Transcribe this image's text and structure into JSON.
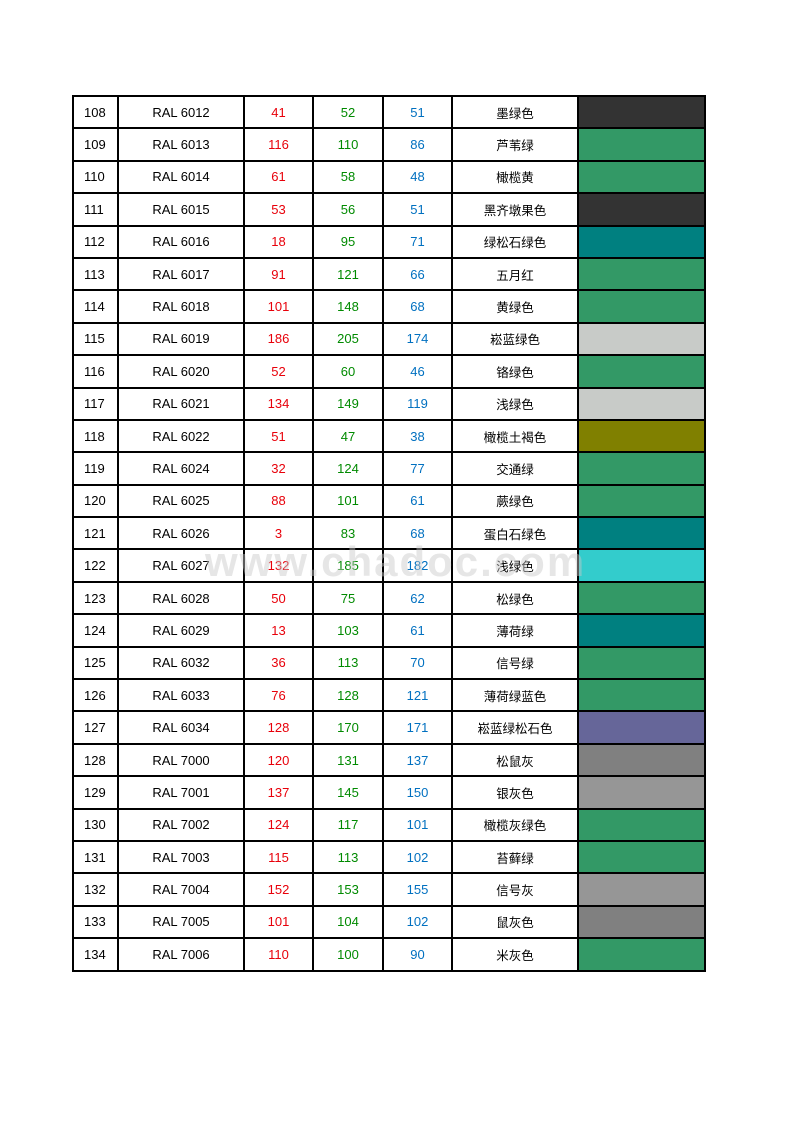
{
  "watermark": "www.chadoc.com",
  "rows": [
    {
      "no": "108",
      "code": "RAL 6012",
      "r": "41",
      "g": "52",
      "b": "51",
      "name": "墨绿色",
      "swatch": "#333333"
    },
    {
      "no": "109",
      "code": "RAL 6013",
      "r": "116",
      "g": "110",
      "b": "86",
      "name": "芦苇绿",
      "swatch": "#339966"
    },
    {
      "no": "110",
      "code": "RAL 6014",
      "r": "61",
      "g": "58",
      "b": "48",
      "name": "橄榄黄",
      "swatch": "#339966"
    },
    {
      "no": "111",
      "code": "RAL 6015",
      "r": "53",
      "g": "56",
      "b": "51",
      "name": "黑齐墩果色",
      "swatch": "#333333"
    },
    {
      "no": "112",
      "code": "RAL 6016",
      "r": "18",
      "g": "95",
      "b": "71",
      "name": "绿松石绿色",
      "swatch": "#008080"
    },
    {
      "no": "113",
      "code": "RAL 6017",
      "r": "91",
      "g": "121",
      "b": "66",
      "name": "五月红",
      "swatch": "#339966"
    },
    {
      "no": "114",
      "code": "RAL 6018",
      "r": "101",
      "g": "148",
      "b": "68",
      "name": "黄绿色",
      "swatch": "#339966"
    },
    {
      "no": "115",
      "code": "RAL 6019",
      "r": "186",
      "g": "205",
      "b": "174",
      "name": "崧蓝绿色",
      "swatch": "#c8cbc8"
    },
    {
      "no": "116",
      "code": "RAL 6020",
      "r": "52",
      "g": "60",
      "b": "46",
      "name": "铬绿色",
      "swatch": "#339966"
    },
    {
      "no": "117",
      "code": "RAL 6021",
      "r": "134",
      "g": "149",
      "b": "119",
      "name": "浅绿色",
      "swatch": "#c8cbc8"
    },
    {
      "no": "118",
      "code": "RAL 6022",
      "r": "51",
      "g": "47",
      "b": "38",
      "name": "橄榄土褐色",
      "swatch": "#808000"
    },
    {
      "no": "119",
      "code": "RAL 6024",
      "r": "32",
      "g": "124",
      "b": "77",
      "name": "交通绿",
      "swatch": "#339966"
    },
    {
      "no": "120",
      "code": "RAL 6025",
      "r": "88",
      "g": "101",
      "b": "61",
      "name": "蕨绿色",
      "swatch": "#339966"
    },
    {
      "no": "121",
      "code": "RAL 6026",
      "r": "3",
      "g": "83",
      "b": "68",
      "name": "蛋白石绿色",
      "swatch": "#008080"
    },
    {
      "no": "122",
      "code": "RAL 6027",
      "r": "132",
      "g": "185",
      "b": "182",
      "name": "浅绿色",
      "swatch": "#33cccc"
    },
    {
      "no": "123",
      "code": "RAL 6028",
      "r": "50",
      "g": "75",
      "b": "62",
      "name": "松绿色",
      "swatch": "#339966"
    },
    {
      "no": "124",
      "code": "RAL 6029",
      "r": "13",
      "g": "103",
      "b": "61",
      "name": "薄荷绿",
      "swatch": "#008080"
    },
    {
      "no": "125",
      "code": "RAL 6032",
      "r": "36",
      "g": "113",
      "b": "70",
      "name": "信号绿",
      "swatch": "#339966"
    },
    {
      "no": "126",
      "code": "RAL 6033",
      "r": "76",
      "g": "128",
      "b": "121",
      "name": "薄荷绿蓝色",
      "swatch": "#339966"
    },
    {
      "no": "127",
      "code": "RAL 6034",
      "r": "128",
      "g": "170",
      "b": "171",
      "name": "崧蓝绿松石色",
      "swatch": "#666699"
    },
    {
      "no": "128",
      "code": "RAL 7000",
      "r": "120",
      "g": "131",
      "b": "137",
      "name": "松鼠灰",
      "swatch": "#808080"
    },
    {
      "no": "129",
      "code": "RAL 7001",
      "r": "137",
      "g": "145",
      "b": "150",
      "name": "银灰色",
      "swatch": "#969696"
    },
    {
      "no": "130",
      "code": "RAL 7002",
      "r": "124",
      "g": "117",
      "b": "101",
      "name": "橄榄灰绿色",
      "swatch": "#339966"
    },
    {
      "no": "131",
      "code": "RAL 7003",
      "r": "115",
      "g": "113",
      "b": "102",
      "name": "苔藓绿",
      "swatch": "#339966"
    },
    {
      "no": "132",
      "code": "RAL 7004",
      "r": "152",
      "g": "153",
      "b": "155",
      "name": "信号灰",
      "swatch": "#969696"
    },
    {
      "no": "133",
      "code": "RAL 7005",
      "r": "101",
      "g": "104",
      "b": "102",
      "name": "鼠灰色",
      "swatch": "#808080"
    },
    {
      "no": "134",
      "code": "RAL 7006",
      "r": "110",
      "g": "100",
      "b": "90",
      "name": "米灰色",
      "swatch": "#339966"
    }
  ]
}
